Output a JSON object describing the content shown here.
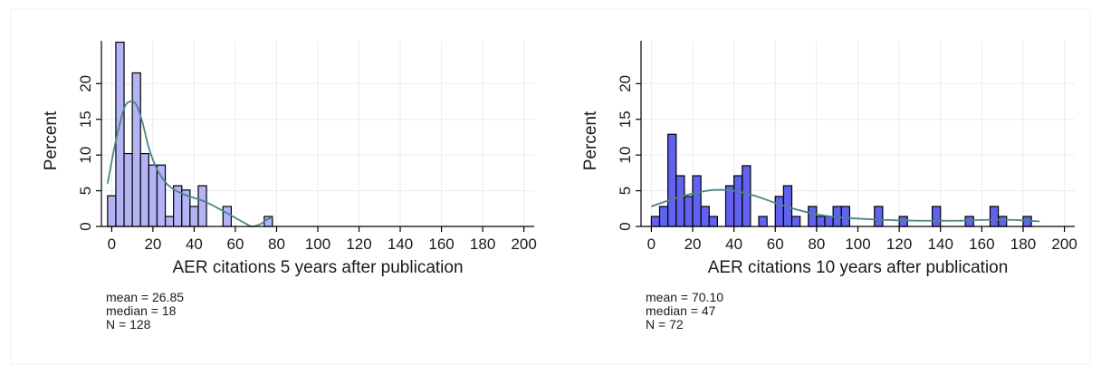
{
  "chart_data": [
    {
      "type": "bar",
      "subtype": "histogram-with-density",
      "xlabel": "AER citations 5 years after publication",
      "ylabel": "Percent",
      "xlim": [
        -5,
        205
      ],
      "ylim": [
        0,
        26
      ],
      "x_ticks": [
        0,
        20,
        40,
        60,
        80,
        100,
        120,
        140,
        160,
        180,
        200
      ],
      "y_ticks": [
        0,
        5,
        10,
        15,
        20
      ],
      "grid": true,
      "bin_width": 4,
      "bins": [
        {
          "x0": -2,
          "x1": 2,
          "value": 4.3
        },
        {
          "x0": 2,
          "x1": 6,
          "value": 25.8
        },
        {
          "x0": 6,
          "x1": 10,
          "value": 10.2
        },
        {
          "x0": 10,
          "x1": 14,
          "value": 21.5
        },
        {
          "x0": 14,
          "x1": 18,
          "value": 10.2
        },
        {
          "x0": 18,
          "x1": 22,
          "value": 8.6
        },
        {
          "x0": 22,
          "x1": 26,
          "value": 8.6
        },
        {
          "x0": 26,
          "x1": 30,
          "value": 1.4
        },
        {
          "x0": 30,
          "x1": 34,
          "value": 5.7
        },
        {
          "x0": 34,
          "x1": 38,
          "value": 5.1
        },
        {
          "x0": 38,
          "x1": 42,
          "value": 2.8
        },
        {
          "x0": 42,
          "x1": 46,
          "value": 5.7
        },
        {
          "x0": 54,
          "x1": 58,
          "value": 2.8
        },
        {
          "x0": 74,
          "x1": 78,
          "value": 1.4
        }
      ],
      "density": {
        "x": [
          -2,
          2,
          6,
          9,
          12,
          15,
          18,
          22,
          26,
          30,
          35,
          40,
          45,
          50,
          55,
          60,
          65,
          68,
          72,
          75,
          78
        ],
        "y": [
          6,
          12,
          16.5,
          17.5,
          17,
          14.5,
          11,
          8,
          6.2,
          5.2,
          4.5,
          4,
          3.5,
          2.8,
          2,
          1.2,
          0.4,
          0,
          0.3,
          0.9,
          1.3
        ]
      },
      "bar_color": "#b3b3f5",
      "line_color": "#4a8585",
      "stats": [
        "mean = 26.85",
        "median = 18",
        "N = 128"
      ]
    },
    {
      "type": "bar",
      "subtype": "histogram-with-density",
      "xlabel": "AER citations 10 years after publication",
      "ylabel": "Percent",
      "xlim": [
        -5,
        205
      ],
      "ylim": [
        0,
        26
      ],
      "x_ticks": [
        0,
        20,
        40,
        60,
        80,
        100,
        120,
        140,
        160,
        180,
        200
      ],
      "y_ticks": [
        0,
        5,
        10,
        15,
        20
      ],
      "grid": true,
      "bin_width": 4,
      "bins": [
        {
          "x0": 0,
          "x1": 4,
          "value": 1.4
        },
        {
          "x0": 4,
          "x1": 8,
          "value": 2.8
        },
        {
          "x0": 8,
          "x1": 12,
          "value": 12.9
        },
        {
          "x0": 12,
          "x1": 16,
          "value": 7.1
        },
        {
          "x0": 16,
          "x1": 20,
          "value": 4.2
        },
        {
          "x0": 20,
          "x1": 24,
          "value": 7.1
        },
        {
          "x0": 24,
          "x1": 28,
          "value": 2.8
        },
        {
          "x0": 28,
          "x1": 32,
          "value": 1.4
        },
        {
          "x0": 36,
          "x1": 40,
          "value": 5.7
        },
        {
          "x0": 40,
          "x1": 44,
          "value": 7.1
        },
        {
          "x0": 44,
          "x1": 48,
          "value": 8.5
        },
        {
          "x0": 52,
          "x1": 56,
          "value": 1.4
        },
        {
          "x0": 60,
          "x1": 64,
          "value": 4.2
        },
        {
          "x0": 64,
          "x1": 68,
          "value": 5.7
        },
        {
          "x0": 68,
          "x1": 72,
          "value": 1.4
        },
        {
          "x0": 76,
          "x1": 80,
          "value": 2.8
        },
        {
          "x0": 80,
          "x1": 84,
          "value": 1.4
        },
        {
          "x0": 84,
          "x1": 88,
          "value": 1.4
        },
        {
          "x0": 88,
          "x1": 92,
          "value": 2.8
        },
        {
          "x0": 92,
          "x1": 96,
          "value": 2.8
        },
        {
          "x0": 108,
          "x1": 112,
          "value": 2.8
        },
        {
          "x0": 120,
          "x1": 124,
          "value": 1.4
        },
        {
          "x0": 136,
          "x1": 140,
          "value": 2.8
        },
        {
          "x0": 152,
          "x1": 156,
          "value": 1.4
        },
        {
          "x0": 164,
          "x1": 168,
          "value": 2.8
        },
        {
          "x0": 168,
          "x1": 172,
          "value": 1.4
        },
        {
          "x0": 180,
          "x1": 184,
          "value": 1.4
        }
      ],
      "density": {
        "x": [
          0,
          10,
          20,
          30,
          40,
          50,
          60,
          70,
          80,
          90,
          100,
          110,
          120,
          130,
          140,
          150,
          160,
          170,
          180,
          188
        ],
        "y": [
          2.8,
          3.8,
          4.6,
          5.1,
          5.0,
          4.3,
          3.3,
          2.4,
          1.7,
          1.3,
          1.1,
          0.95,
          0.85,
          0.8,
          0.8,
          0.8,
          0.9,
          0.95,
          0.85,
          0.7
        ]
      },
      "bar_color": "#6262f0",
      "line_color": "#4a8585",
      "stats": [
        "mean = 70.10",
        "median = 47",
        "N = 72"
      ]
    }
  ]
}
